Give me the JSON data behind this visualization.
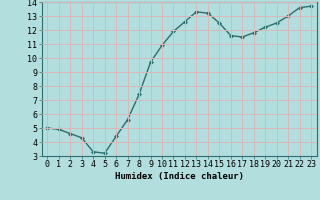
{
  "x": [
    0,
    1,
    2,
    3,
    4,
    5,
    6,
    7,
    8,
    9,
    10,
    11,
    12,
    13,
    14,
    15,
    16,
    17,
    18,
    19,
    20,
    21,
    22,
    23
  ],
  "y": [
    5.0,
    4.9,
    4.6,
    4.3,
    3.3,
    3.2,
    4.4,
    5.6,
    7.4,
    9.7,
    10.9,
    11.9,
    12.6,
    13.3,
    13.2,
    12.5,
    11.6,
    11.5,
    11.8,
    12.2,
    12.5,
    13.0,
    13.6,
    13.7
  ],
  "line_color": "#2d6e6e",
  "marker": "D",
  "marker_size": 2.0,
  "bg_color": "#b2dede",
  "grid_color": "#d9b8b8",
  "xlabel": "Humidex (Indice chaleur)",
  "xlim": [
    -0.5,
    23.5
  ],
  "ylim": [
    3,
    14
  ],
  "yticks": [
    3,
    4,
    5,
    6,
    7,
    8,
    9,
    10,
    11,
    12,
    13,
    14
  ],
  "xticks": [
    0,
    1,
    2,
    3,
    4,
    5,
    6,
    7,
    8,
    9,
    10,
    11,
    12,
    13,
    14,
    15,
    16,
    17,
    18,
    19,
    20,
    21,
    22,
    23
  ],
  "xlabel_fontsize": 6.5,
  "tick_fontsize": 6.0,
  "line_width": 1.0
}
